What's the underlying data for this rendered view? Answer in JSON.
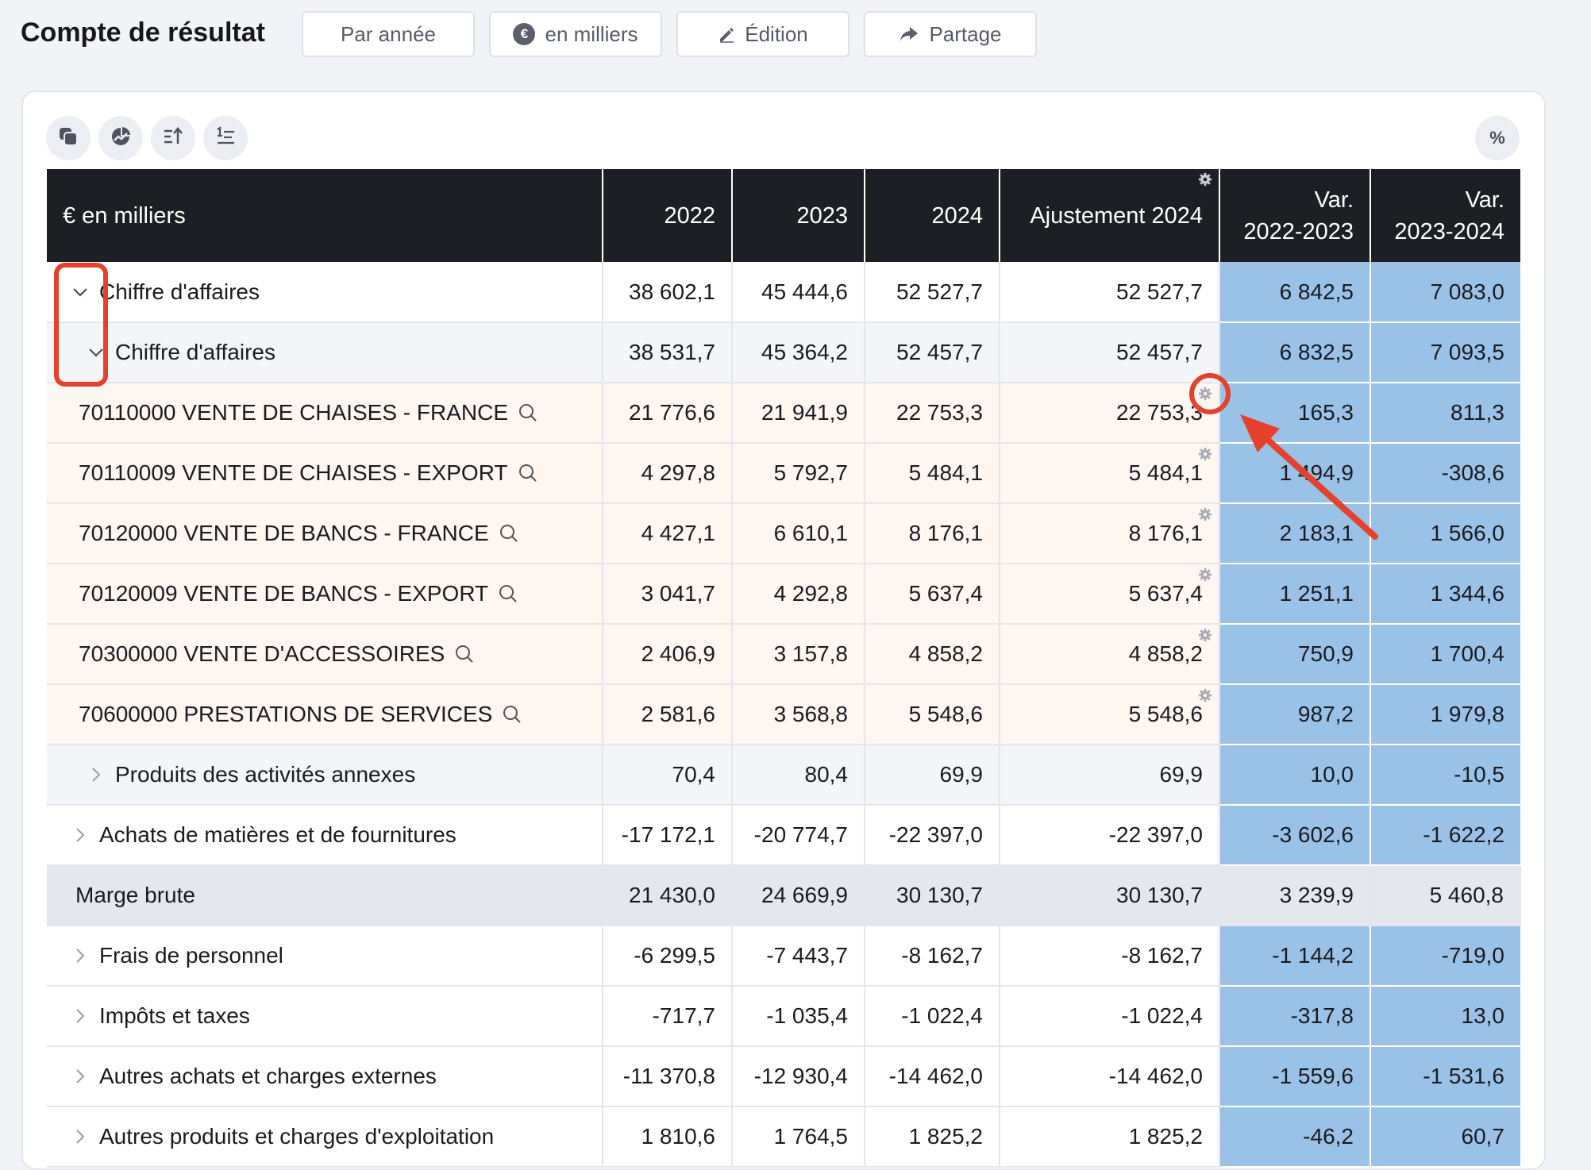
{
  "header": {
    "title": "Compte de résultat",
    "buttons": [
      {
        "label": "Par année",
        "icon": ""
      },
      {
        "label": "en milliers",
        "icon": "euro-circle-icon"
      },
      {
        "label": "Édition",
        "icon": "pen-icon"
      },
      {
        "label": "Partage",
        "icon": "share-icon"
      }
    ],
    "euro_symbol": "€"
  },
  "toolbar": {
    "icons": [
      "copy-icon",
      "chart-icon",
      "sort-up-icon",
      "sort-list-icon"
    ],
    "percent_label": "%"
  },
  "table": {
    "columns": [
      "€ en milliers",
      "2022",
      "2023",
      "2024",
      "Ajustement 2024",
      "Var.\n2022-2023",
      "Var.\n2023-2024"
    ],
    "var_label_1": [
      "Var.",
      "2022-2023"
    ],
    "var_label_2": [
      "Var.",
      "2023-2024"
    ],
    "rows": [
      {
        "type": "lvl0",
        "expand": "open",
        "label": "Chiffre d'affaires",
        "values": [
          "38 602,1",
          "45 444,6",
          "52 527,7",
          "52 527,7",
          "6 842,5",
          "7 083,0"
        ]
      },
      {
        "type": "lvl1",
        "expand": "open",
        "label": "Chiffre d'affaires",
        "values": [
          "38 531,7",
          "45 364,2",
          "52 457,7",
          "52 457,7",
          "6 832,5",
          "7 093,5"
        ]
      },
      {
        "type": "acct",
        "label": "70110000 VENTE DE CHAISES - FRANCE",
        "values": [
          "21 776,6",
          "21 941,9",
          "22 753,3",
          "22 753,3",
          "165,3",
          "811,3"
        ]
      },
      {
        "type": "acct",
        "label": "70110009 VENTE DE CHAISES - EXPORT",
        "values": [
          "4 297,8",
          "5 792,7",
          "5 484,1",
          "5 484,1",
          "1 494,9",
          "-308,6"
        ]
      },
      {
        "type": "acct",
        "label": "70120000 VENTE DE BANCS - FRANCE",
        "values": [
          "4 427,1",
          "6 610,1",
          "8 176,1",
          "8 176,1",
          "2 183,1",
          "1 566,0"
        ]
      },
      {
        "type": "acct",
        "label": "70120009 VENTE DE BANCS - EXPORT",
        "values": [
          "3 041,7",
          "4 292,8",
          "5 637,4",
          "5 637,4",
          "1 251,1",
          "1 344,6"
        ]
      },
      {
        "type": "acct",
        "label": "70300000 VENTE D'ACCESSOIRES",
        "values": [
          "2 406,9",
          "3 157,8",
          "4 858,2",
          "4 858,2",
          "750,9",
          "1 700,4"
        ]
      },
      {
        "type": "acct",
        "label": "70600000 PRESTATIONS DE SERVICES",
        "values": [
          "2 581,6",
          "3 568,8",
          "5 548,6",
          "5 548,6",
          "987,2",
          "1 979,8"
        ]
      },
      {
        "type": "lvl1",
        "expand": "closed",
        "label": "Produits des activités annexes",
        "values": [
          "70,4",
          "80,4",
          "69,9",
          "69,9",
          "10,0",
          "-10,5"
        ]
      },
      {
        "type": "lvl0",
        "expand": "closed",
        "label": "Achats de matières et de fournitures",
        "values": [
          "-17 172,1",
          "-20 774,7",
          "-22 397,0",
          "-22 397,0",
          "-3 602,6",
          "-1 622,2"
        ]
      },
      {
        "type": "margin",
        "label": "Marge brute",
        "values": [
          "21 430,0",
          "24 669,9",
          "30 130,7",
          "30 130,7",
          "3 239,9",
          "5 460,8"
        ]
      },
      {
        "type": "lvl0",
        "expand": "closed",
        "label": "Frais de personnel",
        "values": [
          "-6 299,5",
          "-7 443,7",
          "-8 162,7",
          "-8 162,7",
          "-1 144,2",
          "-719,0"
        ]
      },
      {
        "type": "lvl0",
        "expand": "closed",
        "label": "Impôts et taxes",
        "values": [
          "-717,7",
          "-1 035,4",
          "-1 022,4",
          "-1 022,4",
          "-317,8",
          "13,0"
        ]
      },
      {
        "type": "lvl0",
        "expand": "closed",
        "label": "Autres achats et charges externes",
        "values": [
          "-11 370,8",
          "-12 930,4",
          "-14 462,0",
          "-14 462,0",
          "-1 559,6",
          "-1 531,6"
        ]
      },
      {
        "type": "lvl0",
        "expand": "closed",
        "label": "Autres produits et charges d'exploitation",
        "values": [
          "1 810,6",
          "1 764,5",
          "1 825,2",
          "1 825,2",
          "-46,2",
          "60,7"
        ]
      }
    ]
  },
  "colors": {
    "header_bg": "#1e1f24",
    "var_bg": "#9ac2e6",
    "account_row_bg": "#fdf6f1",
    "margin_row_bg": "#e5e7ee",
    "annotation": "#e5412c"
  }
}
